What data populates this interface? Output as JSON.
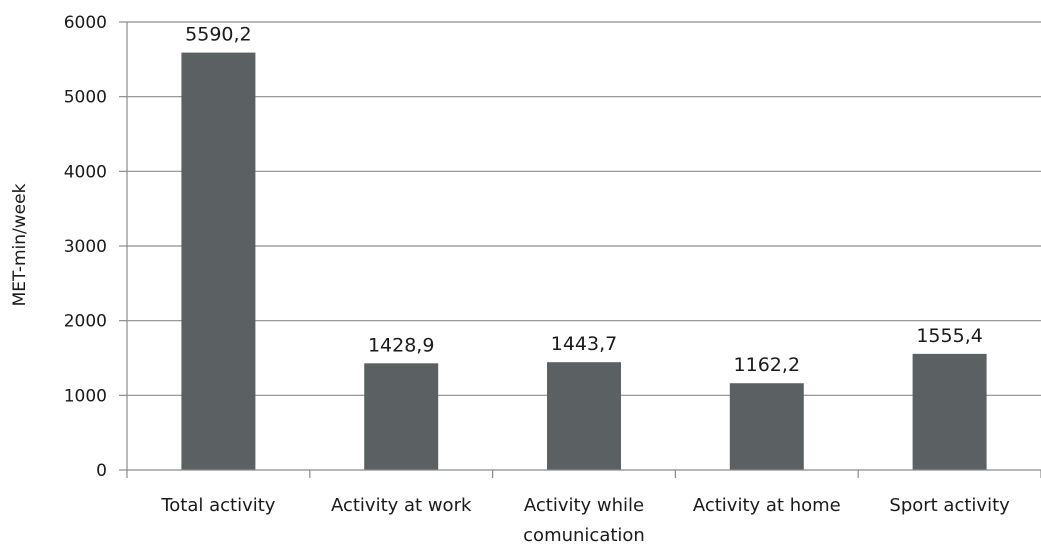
{
  "chart_data": {
    "type": "bar",
    "categories": [
      [
        "Total activity"
      ],
      [
        "Activity at work"
      ],
      [
        "Activity while",
        "comunication"
      ],
      [
        "Activity at home"
      ],
      [
        "Sport activity"
      ]
    ],
    "values": [
      5590.2,
      1428.9,
      1443.7,
      1162.2,
      1555.4
    ],
    "value_labels": [
      "5590,2",
      "1428,9",
      "1443,7",
      "1162,2",
      "1555,4"
    ],
    "ylabel": "MET-min/week",
    "xlabel": "",
    "title": "",
    "ylim": [
      0,
      6000
    ],
    "yticks": [
      0,
      1000,
      2000,
      3000,
      4000,
      5000,
      6000
    ],
    "grid": true,
    "legend": "none",
    "bar_color": "#5b6163"
  }
}
